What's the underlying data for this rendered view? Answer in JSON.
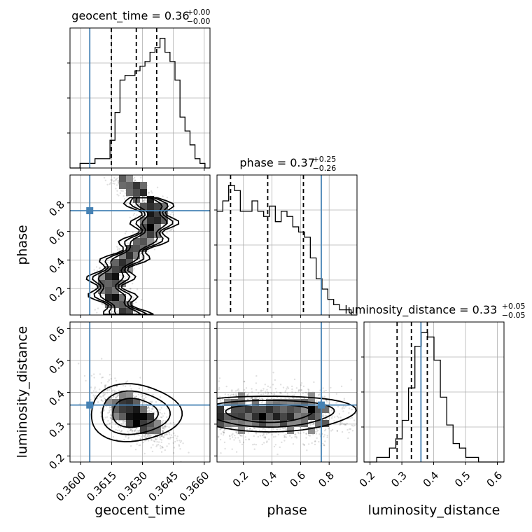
{
  "chart_data": {
    "type": "corner",
    "parameters": [
      "geocent_time",
      "phase",
      "luminosity_distance"
    ],
    "truths": {
      "geocent_time": 0.36044,
      "phase": 0.745,
      "luminosity_distance": 0.36
    },
    "titles": [
      {
        "param": "geocent_time",
        "text": "geocent_time = 0.36",
        "plus": "+0.00",
        "minus": "−0.00"
      },
      {
        "param": "phase",
        "text": "phase = 0.37",
        "plus": "+0.25",
        "minus": "−0.26"
      },
      {
        "param": "luminosity_distance",
        "text": "luminosity_distance = 0.33",
        "plus": "+0.05",
        "minus": "−0.05"
      }
    ],
    "axes": {
      "geocent_time": {
        "range": [
          0.35948,
          0.36628
        ],
        "ticks": [
          0.36,
          0.3615,
          0.363,
          0.3645,
          0.366
        ],
        "tick_labels": [
          "0.3600",
          "0.3615",
          "0.3630",
          "0.3645",
          "0.3660"
        ]
      },
      "phase": {
        "range": [
          0.015,
          0.995
        ],
        "ticks": [
          0.2,
          0.4,
          0.6,
          0.8
        ],
        "tick_labels": [
          "0.2",
          "0.4",
          "0.6",
          "0.8"
        ]
      },
      "luminosity_distance": {
        "range": [
          0.181,
          0.621
        ],
        "ticks": [
          0.2,
          0.3,
          0.4,
          0.5,
          0.6
        ],
        "tick_labels": [
          "0.2",
          "0.3",
          "0.4",
          "0.5",
          "0.6"
        ]
      }
    },
    "marginals": {
      "geocent_time": {
        "bins": [
          0.35948,
          0.36628
        ],
        "counts": [
          0,
          0,
          1,
          1,
          1,
          2,
          2,
          2,
          6,
          12,
          19,
          20,
          20,
          21,
          22,
          23,
          25,
          26,
          28,
          25,
          23,
          19,
          11,
          8,
          5,
          2,
          1,
          0
        ],
        "quantiles": [
          0.36149,
          0.3627,
          0.36369
        ]
      },
      "phase": {
        "bins": [
          0.015,
          0.995
        ],
        "counts": [
          20,
          22,
          25,
          24,
          20,
          20,
          22,
          20,
          19,
          21,
          18,
          20,
          19,
          17,
          16,
          15,
          11,
          7,
          5,
          3,
          2,
          1,
          1,
          0
        ],
        "quantiles": [
          0.11,
          0.37,
          0.62
        ]
      },
      "luminosity_distance": {
        "bins": [
          0.181,
          0.621
        ],
        "counts": [
          0,
          0,
          1,
          1,
          3,
          5,
          9,
          16,
          25,
          28,
          27,
          22,
          14,
          8,
          4,
          3,
          1,
          1,
          0,
          0,
          0,
          0
        ],
        "quantiles": [
          0.285,
          0.33,
          0.38
        ]
      }
    },
    "grid": true
  }
}
